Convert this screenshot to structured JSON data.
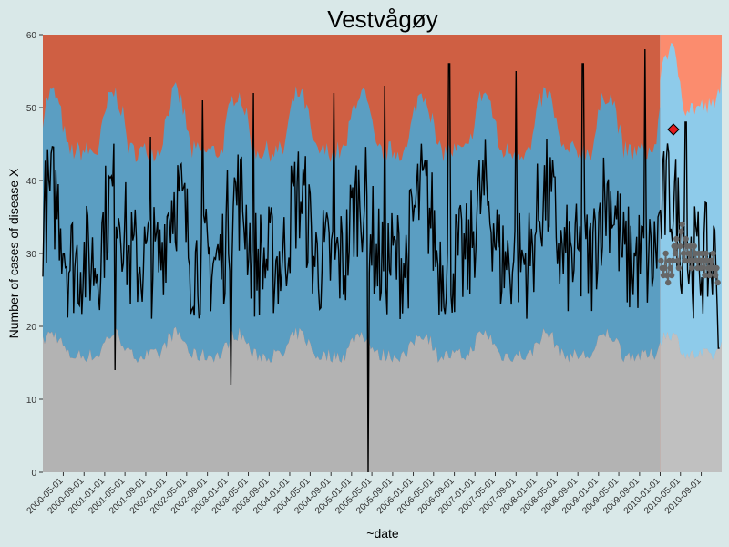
{
  "chart_data": {
    "type": "area",
    "title": "Vestvågøy",
    "xlabel": "~date",
    "ylabel": "Number of cases of disease X",
    "ylim": [
      0,
      60
    ],
    "xlim": [
      "2000-01-01",
      "2010-12-31"
    ],
    "yticks": [
      0,
      10,
      20,
      30,
      40,
      50,
      60
    ],
    "xticks": [
      "2000-05-01",
      "2000-09-01",
      "2001-01-01",
      "2001-05-01",
      "2001-09-01",
      "2002-01-01",
      "2002-05-01",
      "2002-09-01",
      "2003-01-01",
      "2003-05-01",
      "2003-09-01",
      "2004-01-01",
      "2004-05-01",
      "2004-09-01",
      "2005-01-01",
      "2005-05-01",
      "2005-09-01",
      "2006-01-01",
      "2006-05-01",
      "2006-09-01",
      "2007-01-01",
      "2007-05-01",
      "2007-09-01",
      "2008-01-01",
      "2008-05-01",
      "2008-09-01",
      "2009-01-01",
      "2009-05-01",
      "2009-09-01",
      "2010-01-01",
      "2010-05-01",
      "2010-09-01"
    ],
    "regions": [
      {
        "x_start": "2000-01-01",
        "x_end": "2009-12-31",
        "colors": {
          "low": "#b3b3b3",
          "normal": "#5b9ec2",
          "high": "#cf5f43"
        }
      },
      {
        "x_start": "2010-01-01",
        "x_end": "2010-12-31",
        "colors": {
          "low": "#c0c0c0",
          "normal": "#8ecbea",
          "high": "#fb8c6e"
        }
      }
    ],
    "series": [
      {
        "type": "line",
        "color": "#000000",
        "note_points": [
          {
            "x": "2001-03-01",
            "y": 14
          },
          {
            "x": "2001-10-01",
            "y": 46
          },
          {
            "x": "2002-08-01",
            "y": 51
          },
          {
            "x": "2003-06-01",
            "y": 52
          },
          {
            "x": "2003-01-20",
            "y": 12
          },
          {
            "x": "2004-09-20",
            "y": 52
          },
          {
            "x": "2005-04-10",
            "y": 0
          },
          {
            "x": "2005-07-15",
            "y": 53
          },
          {
            "x": "2006-08-01",
            "y": 56
          },
          {
            "x": "2007-09-01",
            "y": 55
          },
          {
            "x": "2008-10-01",
            "y": 56
          },
          {
            "x": "2009-10-01",
            "y": 58
          },
          {
            "x": "2010-06-01",
            "y": 48
          },
          {
            "x": "2010-12-15",
            "y": 17
          }
        ]
      },
      {
        "type": "points",
        "color": "#666666",
        "values": [
          {
            "x": "2010-01-06",
            "y": 29
          },
          {
            "x": "2010-01-13",
            "y": 28
          },
          {
            "x": "2010-01-20",
            "y": 27
          },
          {
            "x": "2010-01-27",
            "y": 28
          },
          {
            "x": "2010-02-03",
            "y": 30
          },
          {
            "x": "2010-02-10",
            "y": 27
          },
          {
            "x": "2010-02-17",
            "y": 26
          },
          {
            "x": "2010-02-24",
            "y": 29
          },
          {
            "x": "2010-03-03",
            "y": 28
          },
          {
            "x": "2010-03-10",
            "y": 27
          },
          {
            "x": "2010-03-17",
            "y": 29
          },
          {
            "x": "2010-03-24",
            "y": 31
          },
          {
            "x": "2010-03-31",
            "y": 30
          },
          {
            "x": "2010-04-07",
            "y": 32
          },
          {
            "x": "2010-04-14",
            "y": 29
          },
          {
            "x": "2010-04-21",
            "y": 28
          },
          {
            "x": "2010-04-28",
            "y": 31
          },
          {
            "x": "2010-05-05",
            "y": 33
          },
          {
            "x": "2010-05-12",
            "y": 34
          },
          {
            "x": "2010-05-19",
            "y": 30
          },
          {
            "x": "2010-05-26",
            "y": 29
          },
          {
            "x": "2010-06-02",
            "y": 32
          },
          {
            "x": "2010-06-09",
            "y": 31
          },
          {
            "x": "2010-06-16",
            "y": 30
          },
          {
            "x": "2010-06-23",
            "y": 29
          },
          {
            "x": "2010-06-30",
            "y": 31
          },
          {
            "x": "2010-07-07",
            "y": 28
          },
          {
            "x": "2010-07-14",
            "y": 29
          },
          {
            "x": "2010-07-21",
            "y": 31
          },
          {
            "x": "2010-07-28",
            "y": 30
          },
          {
            "x": "2010-08-04",
            "y": 29
          },
          {
            "x": "2010-08-11",
            "y": 28
          },
          {
            "x": "2010-08-18",
            "y": 30
          },
          {
            "x": "2010-08-25",
            "y": 29
          },
          {
            "x": "2010-09-01",
            "y": 28
          },
          {
            "x": "2010-09-08",
            "y": 30
          },
          {
            "x": "2010-09-15",
            "y": 29
          },
          {
            "x": "2010-09-22",
            "y": 27
          },
          {
            "x": "2010-09-29",
            "y": 30
          },
          {
            "x": "2010-10-06",
            "y": 29
          },
          {
            "x": "2010-10-13",
            "y": 28
          },
          {
            "x": "2010-10-20",
            "y": 27
          },
          {
            "x": "2010-10-27",
            "y": 29
          },
          {
            "x": "2010-11-03",
            "y": 28
          },
          {
            "x": "2010-11-10",
            "y": 30
          },
          {
            "x": "2010-11-17",
            "y": 28
          },
          {
            "x": "2010-11-24",
            "y": 27
          },
          {
            "x": "2010-12-01",
            "y": 28
          },
          {
            "x": "2010-12-08",
            "y": 26
          }
        ]
      },
      {
        "type": "marker",
        "shape": "diamond",
        "color": "#e31a1c",
        "values": [
          {
            "x": "2010-03-20",
            "y": 47
          }
        ]
      }
    ],
    "grid": false,
    "legend": "none"
  }
}
